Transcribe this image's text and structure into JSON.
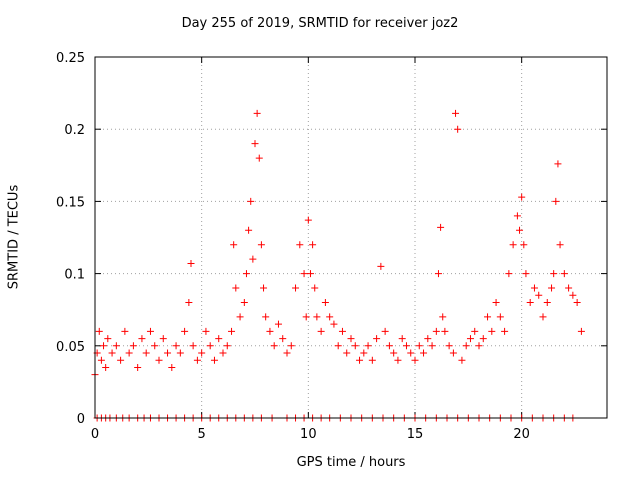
{
  "chart_data": {
    "type": "scatter",
    "title": "Day 255 of 2019, SRMTID for receiver joz2",
    "xlabel": "GPS time / hours",
    "ylabel": "SRMTID / TECUs",
    "xlim": [
      0,
      24
    ],
    "ylim": [
      0,
      0.25
    ],
    "xticks": [
      0,
      5,
      10,
      15,
      20
    ],
    "xtick_labels": [
      "0",
      "5",
      "10",
      "15",
      "20"
    ],
    "yticks": [
      0,
      0.05,
      0.1,
      0.15,
      0.2,
      0.25
    ],
    "ytick_labels": [
      "0",
      "0.05",
      "0.1",
      "0.15",
      "0.2",
      "0.25"
    ],
    "grid": true,
    "marker": "+",
    "series": [
      {
        "name": "SRMTID",
        "color": "#ff0000",
        "x": [
          0.0,
          0.1,
          0.2,
          0.3,
          0.4,
          0.5,
          0.6,
          0.8,
          1.0,
          1.2,
          1.4,
          1.6,
          1.8,
          2.0,
          2.2,
          2.4,
          2.6,
          2.8,
          3.0,
          3.2,
          3.4,
          3.6,
          3.8,
          4.0,
          4.2,
          4.4,
          4.5,
          4.6,
          4.8,
          5.0,
          5.2,
          5.4,
          5.6,
          5.8,
          6.0,
          6.2,
          6.4,
          6.5,
          6.6,
          6.8,
          7.0,
          7.1,
          7.2,
          7.3,
          7.4,
          7.5,
          7.6,
          7.7,
          7.8,
          7.9,
          8.0,
          8.2,
          8.4,
          8.6,
          8.8,
          9.0,
          9.2,
          9.4,
          9.6,
          9.8,
          9.9,
          10.0,
          10.1,
          10.2,
          10.3,
          10.4,
          10.6,
          10.8,
          11.0,
          11.2,
          11.4,
          11.6,
          11.8,
          12.0,
          12.2,
          12.4,
          12.6,
          12.8,
          13.0,
          13.2,
          13.4,
          13.6,
          13.8,
          14.0,
          14.2,
          14.4,
          14.6,
          14.8,
          15.0,
          15.2,
          15.4,
          15.6,
          15.8,
          16.0,
          16.1,
          16.2,
          16.3,
          16.4,
          16.6,
          16.8,
          16.9,
          17.0,
          17.2,
          17.4,
          17.6,
          17.8,
          18.0,
          18.2,
          18.4,
          18.6,
          18.8,
          19.0,
          19.2,
          19.4,
          19.6,
          19.8,
          19.9,
          20.0,
          20.1,
          20.2,
          20.4,
          20.6,
          20.8,
          21.0,
          21.2,
          21.4,
          21.5,
          21.6,
          21.7,
          21.8,
          22.0,
          22.2,
          22.4,
          22.6,
          22.8
        ],
        "y": [
          0.03,
          0.045,
          0.06,
          0.04,
          0.05,
          0.035,
          0.055,
          0.045,
          0.05,
          0.04,
          0.06,
          0.045,
          0.05,
          0.035,
          0.055,
          0.045,
          0.06,
          0.05,
          0.04,
          0.055,
          0.045,
          0.035,
          0.05,
          0.045,
          0.06,
          0.08,
          0.107,
          0.05,
          0.04,
          0.045,
          0.06,
          0.05,
          0.04,
          0.055,
          0.045,
          0.05,
          0.06,
          0.12,
          0.09,
          0.07,
          0.08,
          0.1,
          0.13,
          0.15,
          0.11,
          0.19,
          0.211,
          0.18,
          0.12,
          0.09,
          0.07,
          0.06,
          0.05,
          0.065,
          0.055,
          0.045,
          0.05,
          0.09,
          0.12,
          0.1,
          0.07,
          0.137,
          0.1,
          0.12,
          0.09,
          0.07,
          0.06,
          0.08,
          0.07,
          0.065,
          0.05,
          0.06,
          0.045,
          0.055,
          0.05,
          0.04,
          0.045,
          0.05,
          0.04,
          0.055,
          0.105,
          0.06,
          0.05,
          0.045,
          0.04,
          0.055,
          0.05,
          0.045,
          0.04,
          0.05,
          0.045,
          0.055,
          0.05,
          0.06,
          0.1,
          0.132,
          0.07,
          0.06,
          0.05,
          0.045,
          0.211,
          0.2,
          0.04,
          0.05,
          0.055,
          0.06,
          0.05,
          0.055,
          0.07,
          0.06,
          0.08,
          0.07,
          0.06,
          0.1,
          0.12,
          0.14,
          0.13,
          0.153,
          0.12,
          0.1,
          0.08,
          0.09,
          0.085,
          0.07,
          0.08,
          0.09,
          0.1,
          0.15,
          0.176,
          0.12,
          0.1,
          0.09,
          0.085,
          0.08,
          0.06
        ],
        "zeros_x": [
          0.1,
          0.3,
          0.5,
          0.7,
          1.0,
          1.3,
          1.6,
          2.0,
          2.3,
          2.6,
          3.0,
          3.4,
          3.8,
          4.2,
          4.6,
          5.0,
          5.4,
          5.8,
          6.2,
          6.6,
          7.0,
          7.4,
          7.8,
          8.3,
          9.0,
          9.4,
          9.8,
          10.2,
          10.6,
          11.0,
          11.5,
          12.0,
          12.5,
          13.0,
          13.5,
          14.0,
          14.5,
          15.0,
          15.5,
          16.0,
          16.5,
          17.0,
          17.5,
          18.0,
          18.5,
          19.0,
          19.5,
          20.0,
          20.5,
          21.0,
          21.5,
          22.0,
          22.4
        ]
      }
    ]
  }
}
